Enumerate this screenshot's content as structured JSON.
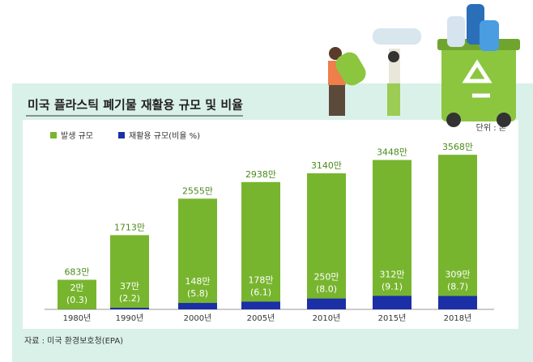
{
  "chart_data": {
    "type": "bar",
    "title": "미국 플라스틱 폐기물 재활용 규모 및 비율",
    "unit": "단위 : 톤",
    "source": "자료 : 미국 환경보호청(EPA)",
    "categories": [
      "1980년",
      "1990년",
      "2000년",
      "2005년",
      "2010년",
      "2015년",
      "2018년"
    ],
    "series": [
      {
        "name": "발생 규모",
        "color": "#78b52f",
        "values": [
          683,
          1713,
          2555,
          2938,
          3140,
          3448,
          3568
        ],
        "value_labels": [
          "683만",
          "1713만",
          "2555만",
          "2938만",
          "3140만",
          "3448만",
          "3568만"
        ]
      },
      {
        "name": "재활용 규모(비율 %)",
        "color": "#1b2fa6",
        "values": [
          2,
          37,
          148,
          178,
          250,
          312,
          309
        ],
        "value_labels": [
          "2만",
          "37만",
          "148만",
          "178만",
          "250만",
          "312만",
          "309만"
        ],
        "rate_labels": [
          "(0.3)",
          "(2.2)",
          "(5.8)",
          "(6.1)",
          "(8.0)",
          "(9.1)",
          "(8.7)"
        ]
      }
    ]
  }
}
